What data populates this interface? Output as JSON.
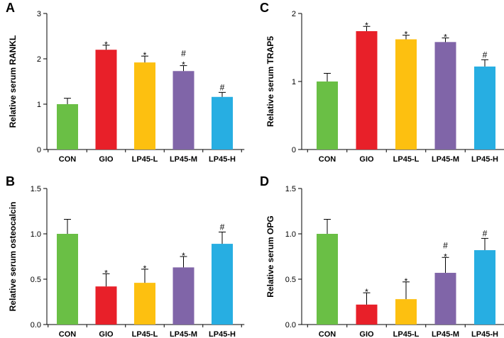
{
  "colors": {
    "CON": "#6abf45",
    "GIO": "#e82029",
    "LP45-L": "#fdc010",
    "LP45-M": "#8065a8",
    "LP45-H": "#27aee2"
  },
  "chart_data": [
    {
      "type": "bar",
      "panel": "A",
      "ylabel": "Relative serum RANKL",
      "ylim": [
        0,
        3
      ],
      "yticks": [
        "0",
        "1",
        "2",
        "3"
      ],
      "categories": [
        "CON",
        "GIO",
        "LP45-L",
        "LP45-M",
        "LP45-H"
      ],
      "values": [
        1.0,
        2.2,
        1.92,
        1.73,
        1.16
      ],
      "errors": [
        0.13,
        0.1,
        0.14,
        0.12,
        0.1
      ],
      "marks": [
        [],
        [
          "*"
        ],
        [
          "*"
        ],
        [
          "#",
          "*"
        ],
        [
          "#"
        ]
      ]
    },
    {
      "type": "bar",
      "panel": "B",
      "ylabel": "Relative serum osteocalcin",
      "ylim": [
        0,
        1.5
      ],
      "yticks": [
        "0.0",
        "0.5",
        "1.0",
        "1.5"
      ],
      "categories": [
        "CON",
        "GIO",
        "LP45-L",
        "LP45-M",
        "LP45-H"
      ],
      "values": [
        1.0,
        0.42,
        0.46,
        0.63,
        0.89
      ],
      "errors": [
        0.16,
        0.14,
        0.15,
        0.12,
        0.13
      ],
      "marks": [
        [],
        [
          "*"
        ],
        [
          "*"
        ],
        [
          "*"
        ],
        [
          "#"
        ]
      ]
    },
    {
      "type": "bar",
      "panel": "C",
      "ylabel": "Relative serum TRAP5",
      "ylim": [
        0,
        2
      ],
      "yticks": [
        "0",
        "1",
        "2"
      ],
      "categories": [
        "CON",
        "GIO",
        "LP45-L",
        "LP45-M",
        "LP45-H"
      ],
      "values": [
        1.0,
        1.74,
        1.62,
        1.58,
        1.22
      ],
      "errors": [
        0.12,
        0.07,
        0.06,
        0.06,
        0.1
      ],
      "marks": [
        [],
        [
          "*"
        ],
        [
          "*"
        ],
        [
          "*"
        ],
        [
          "#"
        ]
      ]
    },
    {
      "type": "bar",
      "panel": "D",
      "ylabel": "Relative serum OPG",
      "ylim": [
        0,
        1.5
      ],
      "yticks": [
        "0.0",
        "0.5",
        "1.0",
        "1.5"
      ],
      "categories": [
        "CON",
        "GIO",
        "LP45-L",
        "LP45-M",
        "LP45-H"
      ],
      "values": [
        1.0,
        0.22,
        0.28,
        0.57,
        0.82
      ],
      "errors": [
        0.16,
        0.13,
        0.19,
        0.17,
        0.13
      ],
      "marks": [
        [],
        [
          "*"
        ],
        [
          "*"
        ],
        [
          "#",
          "*"
        ],
        [
          "#"
        ]
      ]
    }
  ]
}
